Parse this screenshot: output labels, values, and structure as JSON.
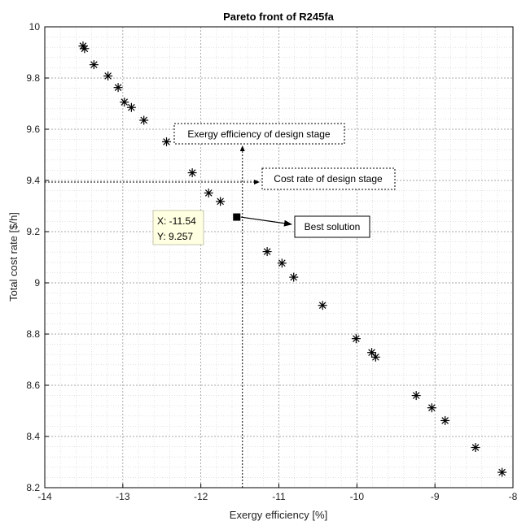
{
  "chart_data": {
    "type": "scatter",
    "title": "Pareto front of R245fa",
    "xlabel": "Exergy efficiency [%]",
    "ylabel": "Total cost rate [$/h]",
    "xlim": [
      -14,
      -8
    ],
    "ylim": [
      8.2,
      10
    ],
    "xticks": [
      "-14",
      "-13",
      "-12",
      "-11",
      "-10",
      "-9",
      "-8"
    ],
    "yticks": [
      "8.2",
      "8.4",
      "8.6",
      "8.8",
      "9",
      "9.2",
      "9.4",
      "9.6",
      "9.8",
      "10"
    ],
    "grid": true,
    "minor_grid": true,
    "series": [
      {
        "marker": "asterisk",
        "color": "#000000",
        "points": [
          {
            "x": -13.51,
            "y": 9.925
          },
          {
            "x": -13.49,
            "y": 9.915
          },
          {
            "x": -13.37,
            "y": 9.852
          },
          {
            "x": -13.19,
            "y": 9.808
          },
          {
            "x": -13.06,
            "y": 9.763
          },
          {
            "x": -12.98,
            "y": 9.706
          },
          {
            "x": -12.89,
            "y": 9.685
          },
          {
            "x": -12.73,
            "y": 9.635
          },
          {
            "x": -12.44,
            "y": 9.551
          },
          {
            "x": -12.11,
            "y": 9.43
          },
          {
            "x": -11.9,
            "y": 9.351
          },
          {
            "x": -11.75,
            "y": 9.318
          },
          {
            "x": -11.15,
            "y": 9.122
          },
          {
            "x": -10.96,
            "y": 9.077
          },
          {
            "x": -10.81,
            "y": 9.022
          },
          {
            "x": -10.44,
            "y": 8.912
          },
          {
            "x": -10.01,
            "y": 8.782
          },
          {
            "x": -9.81,
            "y": 8.728
          },
          {
            "x": -9.76,
            "y": 8.71
          },
          {
            "x": -9.24,
            "y": 8.56
          },
          {
            "x": -9.04,
            "y": 8.512
          },
          {
            "x": -8.87,
            "y": 8.462
          },
          {
            "x": -8.48,
            "y": 8.357
          },
          {
            "x": -8.14,
            "y": 8.26
          }
        ]
      }
    ],
    "best_solution": {
      "x": -11.54,
      "y": 9.257,
      "marker": "square"
    },
    "annotations": {
      "datatip_x": "X: -11.54",
      "datatip_y": "Y: 9.257",
      "best_label": "Best solution",
      "exergy_label": "Exergy efficiency of design stage",
      "cost_label": "Cost rate of design stage"
    }
  }
}
